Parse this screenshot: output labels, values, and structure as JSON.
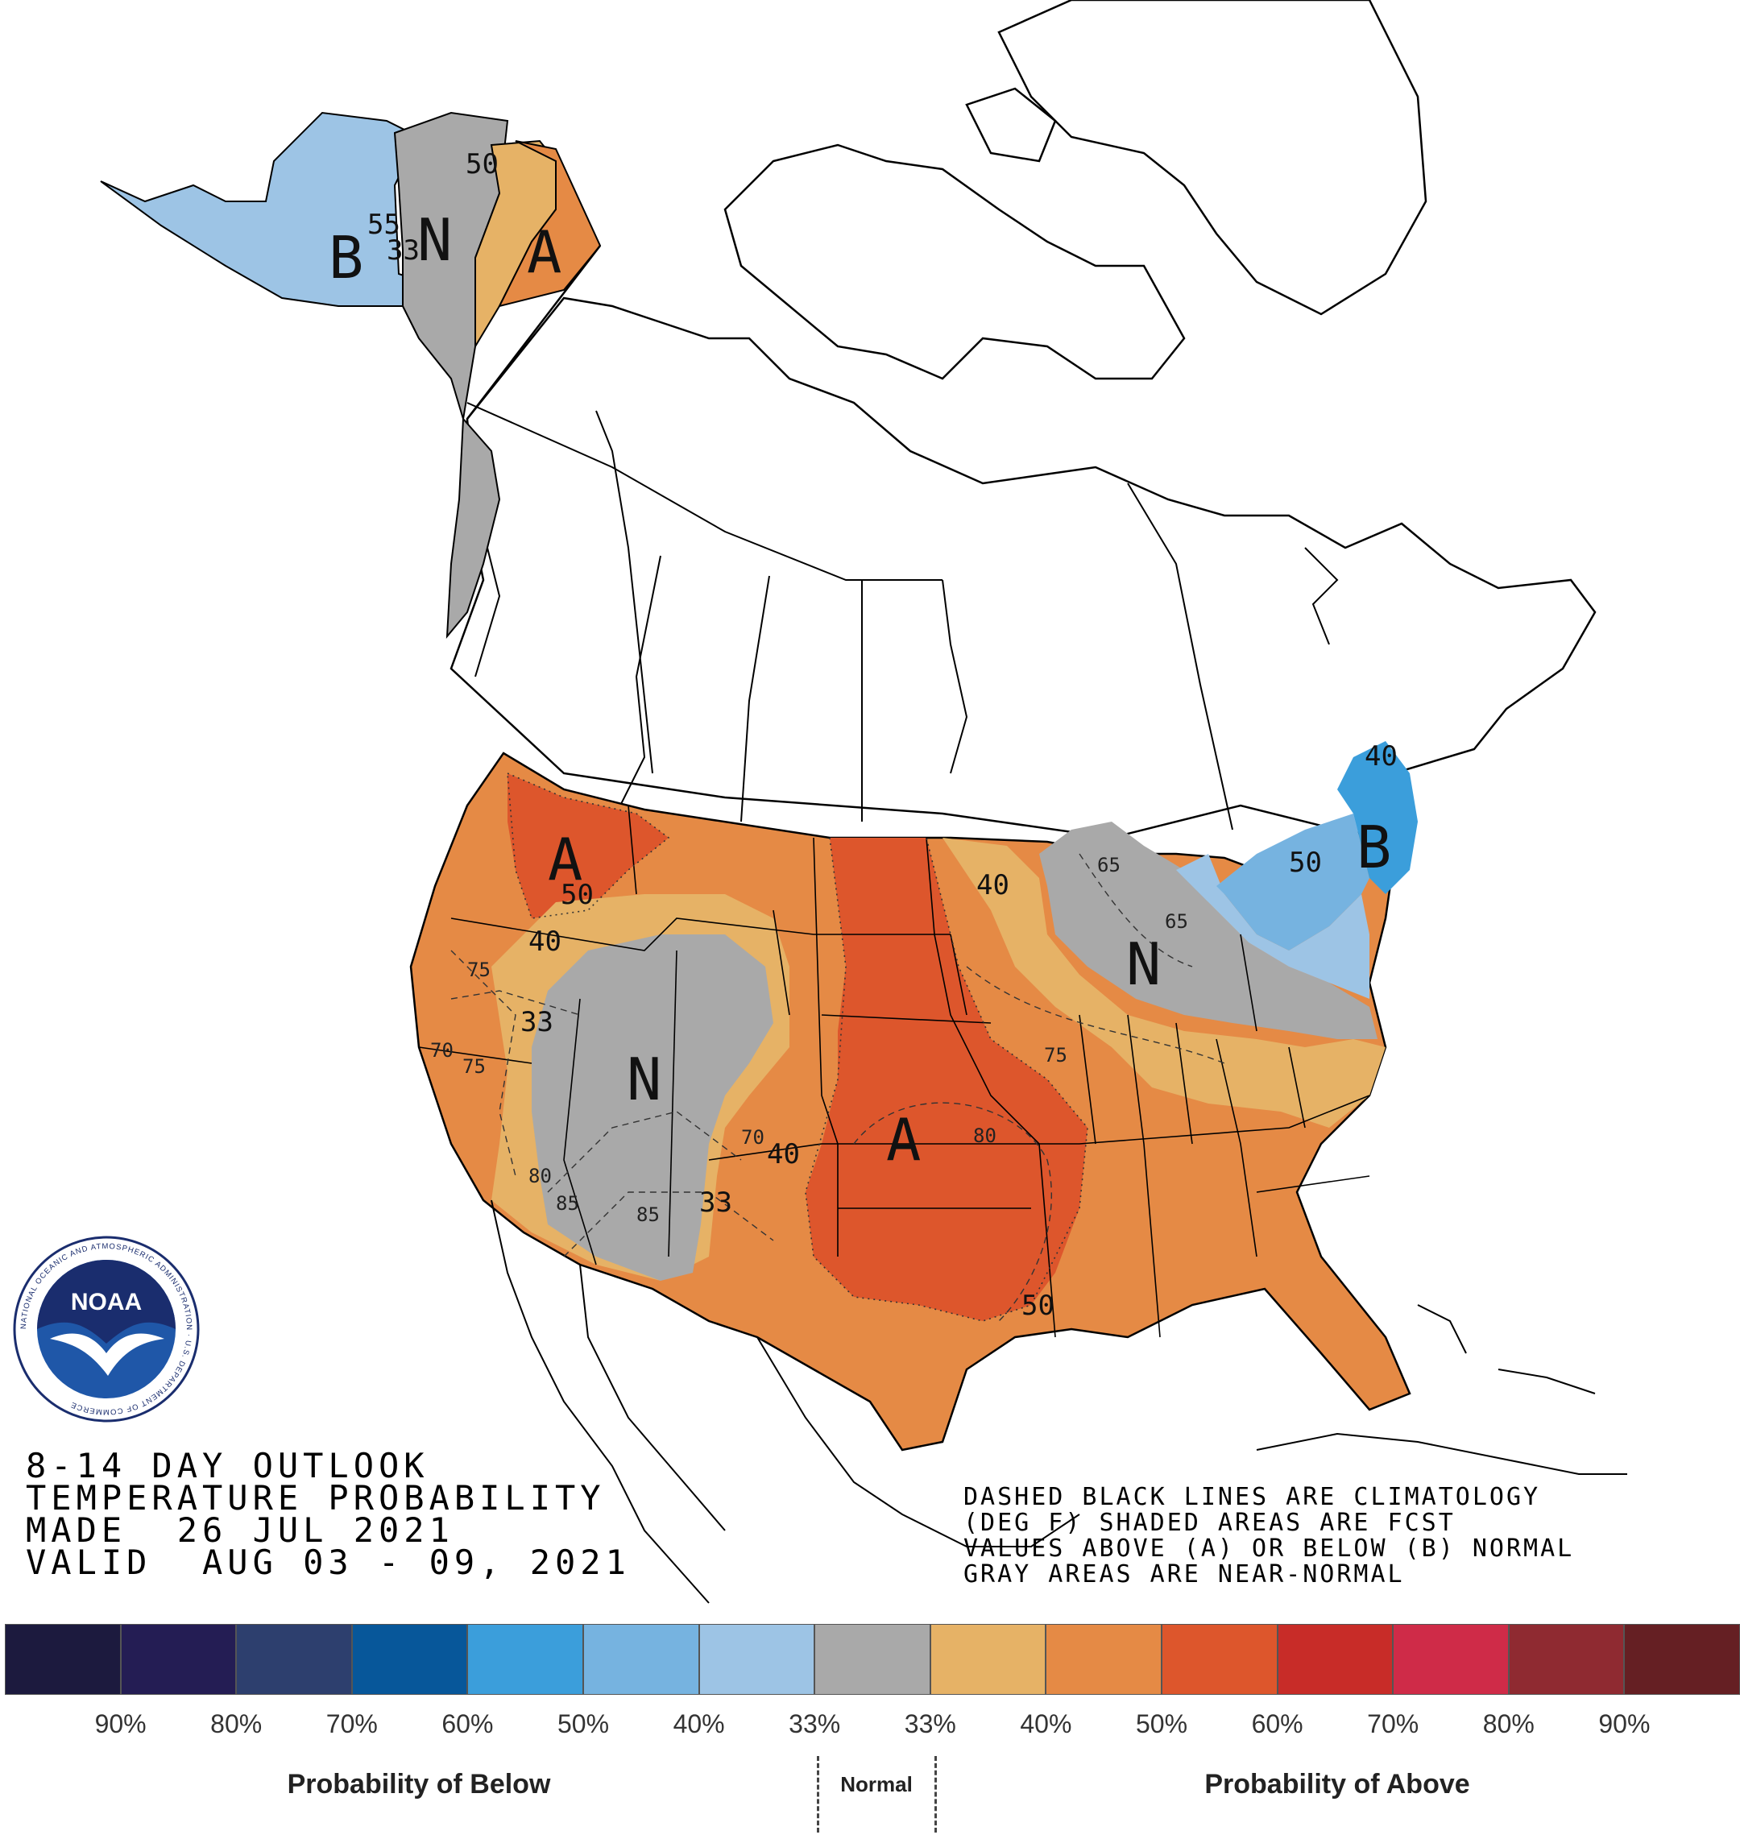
{
  "title": {
    "line1": "8-14 DAY OUTLOOK",
    "line2": "TEMPERATURE PROBABILITY",
    "line3": "MADE  26 JUL 2021",
    "line4": "VALID  AUG 03 - 09, 2021"
  },
  "notes": {
    "line1": "DASHED BLACK LINES ARE CLIMATOLOGY",
    "line2": "(DEG F) SHADED AREAS ARE FCST",
    "line3": "VALUES ABOVE (A) OR BELOW (B) NORMAL",
    "line4": "GRAY AREAS ARE NEAR-NORMAL"
  },
  "logo": {
    "text": "NOAA",
    "ring_text": "NATIONAL OCEANIC AND ATMOSPHERIC ADMINISTRATION · U.S. DEPARTMENT OF COMMERCE"
  },
  "zone_labels": {
    "alaska_b": "B",
    "alaska_n": "N",
    "alaska_a": "A",
    "northwest_a": "A",
    "southwest_n": "N",
    "plains_a": "A",
    "great_lakes_n": "N",
    "northeast_b": "B"
  },
  "contour_labels": {
    "ak_50": "50",
    "ak_33": "33",
    "ak_55": "55",
    "nw_50": "50",
    "nw_40": "40",
    "sw_33a": "33",
    "sw_33b": "33",
    "sw_40": "40",
    "lakes_40": "40",
    "ne_50": "50",
    "ne_40": "40",
    "south_50": "50"
  },
  "climatology_labels": {
    "ak_55": "55",
    "ca_75a": "75",
    "ca_75b": "75",
    "ca_80": "80",
    "sw_85a": "85",
    "sw_85b": "85",
    "sw_70": "70",
    "plains_80": "80",
    "midwest_75": "75",
    "lakes_65": "65",
    "lakes_65b": "65",
    "ca_70": "70"
  },
  "colors": {
    "below_90": "#1c1a3e",
    "below_80": "#241d54",
    "below_70": "#2d3f6e",
    "below_60": "#07579a",
    "below_50": "#3b9edb",
    "below_40": "#76b3e0",
    "below_33": "#9dc4e5",
    "normal_below": "#a9a9a9",
    "above_33": "#e6b266",
    "above_40": "#e58a45",
    "above_50": "#dd562c",
    "above_60": "#c82c28",
    "above_70": "#cf2b48",
    "above_80": "#8f2a31",
    "above_90": "#651f23"
  },
  "legend": {
    "swatches": [
      "#1c1a3e",
      "#241d54",
      "#2d3f6e",
      "#07579a",
      "#3b9edb",
      "#76b3e0",
      "#9dc4e5",
      "#a9a9a9",
      "#e6b266",
      "#e58a45",
      "#dd562c",
      "#c82c28",
      "#cf2b48",
      "#8f2a31",
      "#651f23"
    ],
    "percentages": [
      "90%",
      "80%",
      "70%",
      "60%",
      "50%",
      "40%",
      "33%",
      "33%",
      "40%",
      "50%",
      "60%",
      "70%",
      "80%",
      "90%"
    ],
    "below_label": "Probability of Below",
    "normal_label": "Normal",
    "above_label": "Probability of Above"
  }
}
